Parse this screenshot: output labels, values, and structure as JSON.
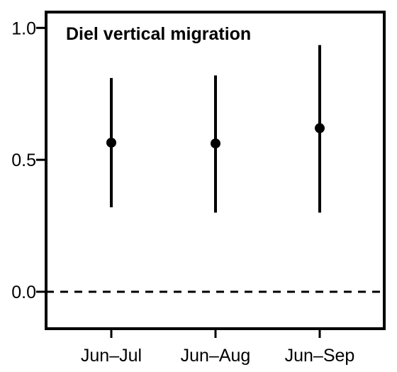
{
  "chart_data": {
    "type": "scatter",
    "title": "Diel vertical migration",
    "xlabel": "",
    "ylabel": "",
    "categories": [
      "Jun–Jul",
      "Jun–Aug",
      "Jun–Sep"
    ],
    "series": [
      {
        "values": [
          0.565,
          0.562,
          0.62
        ],
        "lower": [
          0.32,
          0.3,
          0.3
        ],
        "upper": [
          0.81,
          0.82,
          0.935
        ]
      }
    ],
    "reference_line": {
      "y": 0.0,
      "style": "dashed"
    },
    "ylim": [
      -0.14,
      1.06
    ],
    "yticks": [
      0.0,
      0.5,
      1.0
    ],
    "ytick_labels": [
      "0.0",
      "0.5",
      "1.0"
    ],
    "grid": false,
    "legend": "none",
    "colors": {
      "marks": "#000000",
      "background": "#ffffff"
    }
  }
}
